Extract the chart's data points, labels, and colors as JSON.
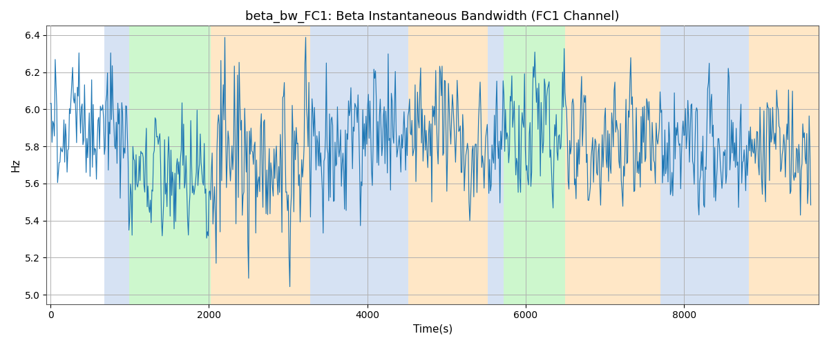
{
  "title": "beta_bw_FC1: Beta Instantaneous Bandwidth (FC1 Channel)",
  "xlabel": "Time(s)",
  "ylabel": "Hz",
  "ylim": [
    4.95,
    6.45
  ],
  "xlim": [
    -50,
    9700
  ],
  "xticks": [
    0,
    2000,
    4000,
    6000,
    8000
  ],
  "yticks": [
    5.0,
    5.2,
    5.4,
    5.6,
    5.8,
    6.0,
    6.2,
    6.4
  ],
  "line_color": "#1f77b4",
  "background_color": "#ffffff",
  "grid_color": "#b0b0b0",
  "bands": [
    {
      "start": 680,
      "end": 990,
      "color": "#aec6e8",
      "alpha": 0.5
    },
    {
      "start": 990,
      "end": 2020,
      "color": "#90ee90",
      "alpha": 0.45
    },
    {
      "start": 2020,
      "end": 3280,
      "color": "#ffd8a0",
      "alpha": 0.6
    },
    {
      "start": 3280,
      "end": 4520,
      "color": "#aec6e8",
      "alpha": 0.5
    },
    {
      "start": 4520,
      "end": 5520,
      "color": "#ffd8a0",
      "alpha": 0.6
    },
    {
      "start": 5520,
      "end": 5720,
      "color": "#aec6e8",
      "alpha": 0.5
    },
    {
      "start": 5720,
      "end": 6500,
      "color": "#90ee90",
      "alpha": 0.45
    },
    {
      "start": 6500,
      "end": 7700,
      "color": "#ffd8a0",
      "alpha": 0.6
    },
    {
      "start": 7700,
      "end": 8820,
      "color": "#aec6e8",
      "alpha": 0.5
    },
    {
      "start": 8820,
      "end": 9700,
      "color": "#ffd8a0",
      "alpha": 0.6
    }
  ],
  "seed": 2023,
  "n_points": 960,
  "t_max": 9600,
  "title_fontsize": 13,
  "label_fontsize": 11,
  "line_width": 0.85,
  "segment_means": [
    {
      "start": 0,
      "end": 680,
      "mean": 5.95,
      "std": 0.13
    },
    {
      "start": 680,
      "end": 990,
      "mean": 5.8,
      "std": 0.16
    },
    {
      "start": 990,
      "end": 2020,
      "mean": 5.65,
      "std": 0.13
    },
    {
      "start": 2020,
      "end": 3280,
      "mean": 5.78,
      "std": 0.22
    },
    {
      "start": 3280,
      "end": 4520,
      "mean": 5.82,
      "std": 0.17
    },
    {
      "start": 4520,
      "end": 5520,
      "mean": 5.83,
      "std": 0.18
    },
    {
      "start": 5520,
      "end": 5720,
      "mean": 5.8,
      "std": 0.17
    },
    {
      "start": 5720,
      "end": 6500,
      "mean": 5.88,
      "std": 0.15
    },
    {
      "start": 6500,
      "end": 7700,
      "mean": 5.82,
      "std": 0.16
    },
    {
      "start": 7700,
      "end": 8820,
      "mean": 5.84,
      "std": 0.15
    },
    {
      "start": 8820,
      "end": 9600,
      "mean": 5.8,
      "std": 0.15
    }
  ]
}
